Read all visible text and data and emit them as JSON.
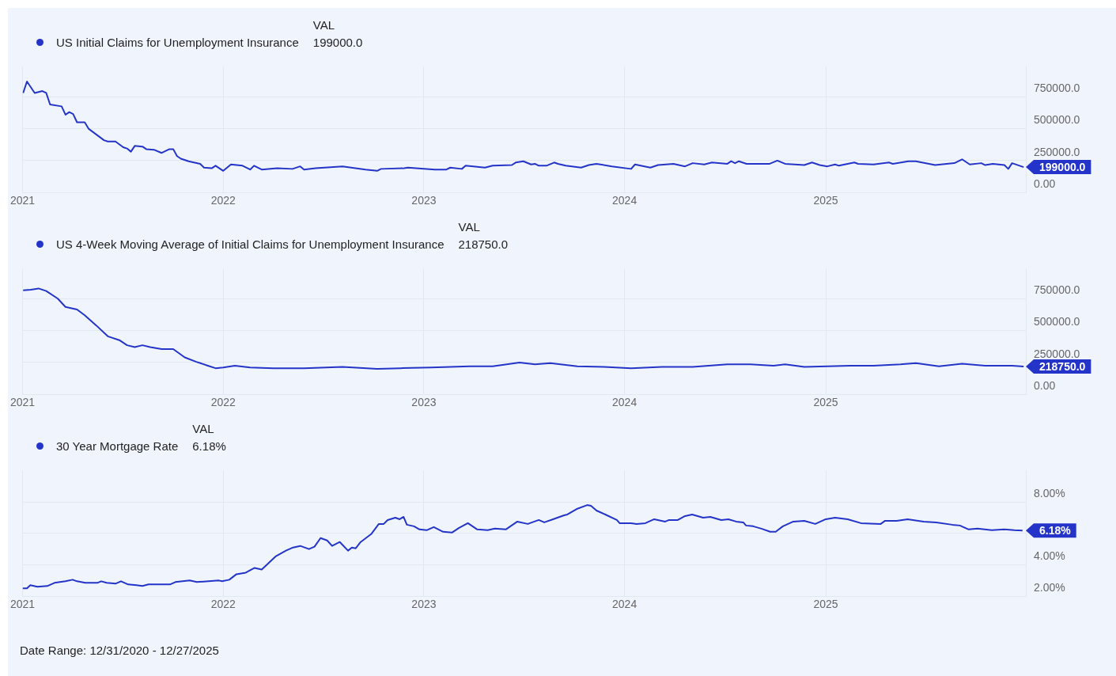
{
  "chart_data": [
    {
      "type": "line",
      "legend": "top left",
      "legend_title": "VAL",
      "grid": true,
      "xlim": [
        "2021-01-01",
        "2025-12-31"
      ],
      "xticks": [
        "2021",
        "2022",
        "2023",
        "2024",
        "2025"
      ],
      "ylim": [
        0,
        985000
      ],
      "yticks": [
        {
          "value": 0,
          "label": "0.00"
        },
        {
          "value": 250000,
          "label": "250000.0"
        },
        {
          "value": 500000,
          "label": "500000.0"
        },
        {
          "value": 750000,
          "label": "750000.0"
        }
      ],
      "annotations": [
        "199000.0",
        {
          "text": "199000.0",
          "x": "2025-12-27",
          "y": 199000
        }
      ],
      "series": [
        {
          "name": "US Initial Claims for Unemployment Insurance",
          "color": "#2434c8",
          "x": [
            "2021-01-02",
            "2021-01-09",
            "2021-01-23",
            "2021-02-06",
            "2021-02-13",
            "2021-02-20",
            "2021-03-13",
            "2021-03-20",
            "2021-03-27",
            "2021-04-03",
            "2021-04-10",
            "2021-04-24",
            "2021-05-01",
            "2021-05-29",
            "2021-06-05",
            "2021-06-19",
            "2021-07-03",
            "2021-07-10",
            "2021-07-17",
            "2021-07-24",
            "2021-08-07",
            "2021-08-14",
            "2021-08-28",
            "2021-09-11",
            "2021-09-25",
            "2021-10-02",
            "2021-10-09",
            "2021-10-16",
            "2021-10-30",
            "2021-11-20",
            "2021-11-27",
            "2021-12-11",
            "2021-12-18",
            "2022-01-01",
            "2022-01-15",
            "2022-02-05",
            "2022-02-19",
            "2022-02-26",
            "2022-03-12",
            "2022-04-09",
            "2022-05-07",
            "2022-05-21",
            "2022-05-28",
            "2022-06-18",
            "2022-08-06",
            "2022-09-17",
            "2022-10-08",
            "2022-10-15",
            "2022-11-26",
            "2022-12-03",
            "2023-01-21",
            "2023-02-11",
            "2023-02-18",
            "2023-03-11",
            "2023-03-18",
            "2023-04-22",
            "2023-05-06",
            "2023-06-10",
            "2023-06-17",
            "2023-07-01",
            "2023-07-15",
            "2023-07-22",
            "2023-07-29",
            "2023-08-12",
            "2023-08-26",
            "2023-09-02",
            "2023-09-16",
            "2023-10-14",
            "2023-10-28",
            "2023-11-11",
            "2023-12-09",
            "2024-01-13",
            "2024-01-20",
            "2024-02-17",
            "2024-03-02",
            "2024-03-30",
            "2024-04-20",
            "2024-05-04",
            "2024-05-25",
            "2024-06-08",
            "2024-07-06",
            "2024-07-13",
            "2024-07-20",
            "2024-07-27",
            "2024-08-10",
            "2024-09-21",
            "2024-10-05",
            "2024-10-19",
            "2024-11-23",
            "2024-12-07",
            "2024-12-21",
            "2025-01-04",
            "2025-01-18",
            "2025-01-25",
            "2025-02-22",
            "2025-03-01",
            "2025-03-29",
            "2025-04-26",
            "2025-05-03",
            "2025-05-31",
            "2025-06-14",
            "2025-07-19",
            "2025-08-23",
            "2025-09-06",
            "2025-09-20",
            "2025-10-11",
            "2025-10-18",
            "2025-11-01",
            "2025-11-22",
            "2025-11-29",
            "2025-12-06",
            "2025-12-27"
          ],
          "values": [
            780000,
            870000,
            780000,
            795000,
            780000,
            690000,
            675000,
            610000,
            630000,
            615000,
            550000,
            550000,
            500000,
            410000,
            400000,
            400000,
            355000,
            345000,
            320000,
            365000,
            360000,
            340000,
            335000,
            310000,
            340000,
            340000,
            285000,
            265000,
            245000,
            225000,
            195000,
            190000,
            210000,
            170000,
            220000,
            210000,
            180000,
            210000,
            180000,
            190000,
            185000,
            205000,
            180000,
            190000,
            205000,
            180000,
            170000,
            185000,
            190000,
            195000,
            180000,
            180000,
            195000,
            185000,
            210000,
            195000,
            210000,
            215000,
            235000,
            245000,
            220000,
            225000,
            210000,
            210000,
            235000,
            225000,
            210000,
            195000,
            215000,
            225000,
            205000,
            185000,
            220000,
            195000,
            215000,
            225000,
            205000,
            230000,
            220000,
            235000,
            225000,
            245000,
            230000,
            245000,
            225000,
            225000,
            250000,
            225000,
            215000,
            235000,
            215000,
            205000,
            220000,
            210000,
            235000,
            225000,
            220000,
            235000,
            225000,
            245000,
            245000,
            215000,
            230000,
            260000,
            220000,
            230000,
            215000,
            225000,
            215000,
            185000,
            230000,
            199000
          ]
        }
      ]
    },
    {
      "type": "line",
      "legend": "top left",
      "legend_title": "VAL",
      "grid": true,
      "xlim": [
        "2021-01-01",
        "2025-12-31"
      ],
      "xticks": [
        "2021",
        "2022",
        "2023",
        "2024",
        "2025"
      ],
      "ylim": [
        0,
        985000
      ],
      "yticks": [
        {
          "value": 0,
          "label": "0.00"
        },
        {
          "value": 250000,
          "label": "250000.0"
        },
        {
          "value": 500000,
          "label": "500000.0"
        },
        {
          "value": 750000,
          "label": "750000.0"
        }
      ],
      "annotations": [
        "218750.0",
        {
          "text": "218750.0",
          "x": "2025-12-27",
          "y": 218750
        }
      ],
      "series": [
        {
          "name": "US 4-Week Moving Average of Initial Claims for Unemployment Insurance",
          "color": "#2434c8",
          "x": [
            "2021-01-02",
            "2021-01-16",
            "2021-01-30",
            "2021-02-13",
            "2021-03-06",
            "2021-03-20",
            "2021-04-10",
            "2021-04-24",
            "2021-05-15",
            "2021-06-05",
            "2021-06-26",
            "2021-07-10",
            "2021-07-24",
            "2021-08-07",
            "2021-08-21",
            "2021-09-11",
            "2021-10-02",
            "2021-10-23",
            "2021-11-13",
            "2021-12-04",
            "2021-12-18",
            "2022-01-01",
            "2022-01-22",
            "2022-02-19",
            "2022-04-02",
            "2022-05-28",
            "2022-08-06",
            "2022-10-08",
            "2022-11-19",
            "2023-01-14",
            "2023-03-25",
            "2023-05-06",
            "2023-06-24",
            "2023-07-22",
            "2023-08-19",
            "2023-10-07",
            "2023-11-25",
            "2024-01-13",
            "2024-03-09",
            "2024-05-04",
            "2024-07-06",
            "2024-08-17",
            "2024-09-28",
            "2024-10-19",
            "2024-11-23",
            "2025-01-04",
            "2025-02-15",
            "2025-03-29",
            "2025-05-17",
            "2025-06-14",
            "2025-07-26",
            "2025-09-06",
            "2025-10-18",
            "2025-12-06",
            "2025-12-27"
          ],
          "values": [
            815000,
            820000,
            830000,
            810000,
            750000,
            685000,
            665000,
            620000,
            540000,
            455000,
            425000,
            385000,
            370000,
            385000,
            370000,
            355000,
            355000,
            290000,
            255000,
            225000,
            205000,
            210000,
            225000,
            210000,
            205000,
            205000,
            215000,
            200000,
            205000,
            210000,
            220000,
            220000,
            250000,
            235000,
            245000,
            220000,
            215000,
            205000,
            215000,
            215000,
            235000,
            235000,
            225000,
            235000,
            215000,
            220000,
            225000,
            225000,
            235000,
            245000,
            220000,
            240000,
            225000,
            225000,
            218750
          ]
        }
      ]
    },
    {
      "type": "line",
      "legend": "top left",
      "legend_title": "VAL",
      "grid": true,
      "xlim": [
        "2021-01-01",
        "2025-12-31"
      ],
      "xticks": [
        "2021",
        "2022",
        "2023",
        "2024",
        "2025"
      ],
      "ylim": [
        2,
        10
      ],
      "yticks": [
        {
          "value": 2,
          "label": "2.00%"
        },
        {
          "value": 4,
          "label": "4.00%"
        },
        {
          "value": 6,
          "label": null
        },
        {
          "value": 8,
          "label": "8.00%"
        }
      ],
      "annotations": [
        "6.18%",
        {
          "text": "6.18%",
          "x": "2025-12-25",
          "y": 6.18
        },
        "Date Range: 12/31/2020 - 12/27/2025"
      ],
      "series": [
        {
          "name": "30 Year Mortgage Rate",
          "color": "#2434c8",
          "x": [
            "2021-01-01",
            "2021-01-09",
            "2021-01-15",
            "2021-01-28",
            "2021-02-15",
            "2021-02-28",
            "2021-03-20",
            "2021-04-02",
            "2021-04-10",
            "2021-04-25",
            "2021-05-17",
            "2021-05-24",
            "2021-06-03",
            "2021-06-19",
            "2021-06-29",
            "2021-07-12",
            "2021-07-27",
            "2021-08-07",
            "2021-08-18",
            "2021-09-26",
            "2021-10-06",
            "2021-11-01",
            "2021-11-14",
            "2021-12-24",
            "2021-12-30",
            "2022-01-12",
            "2022-01-25",
            "2022-02-11",
            "2022-02-27",
            "2022-03-12",
            "2022-04-07",
            "2022-04-25",
            "2022-05-08",
            "2022-05-21",
            "2022-06-06",
            "2022-06-16",
            "2022-06-27",
            "2022-07-09",
            "2022-07-18",
            "2022-08-01",
            "2022-08-16",
            "2022-08-23",
            "2022-08-30",
            "2022-09-08",
            "2022-09-27",
            "2022-10-11",
            "2022-10-20",
            "2022-10-27",
            "2022-11-10",
            "2022-11-18",
            "2022-11-25",
            "2022-12-01",
            "2022-12-14",
            "2022-12-24",
            "2023-01-06",
            "2023-01-19",
            "2023-02-05",
            "2023-02-21",
            "2023-03-06",
            "2023-03-22",
            "2023-04-08",
            "2023-04-27",
            "2023-05-10",
            "2023-05-30",
            "2023-06-20",
            "2023-07-09",
            "2023-07-29",
            "2023-08-08",
            "2023-08-24",
            "2023-09-13",
            "2023-09-19",
            "2023-10-06",
            "2023-10-25",
            "2023-11-01",
            "2023-11-11",
            "2023-11-27",
            "2023-12-18",
            "2023-12-23",
            "2024-01-13",
            "2024-01-23",
            "2024-02-08",
            "2024-02-24",
            "2024-03-15",
            "2024-03-22",
            "2024-04-07",
            "2024-04-20",
            "2024-05-03",
            "2024-05-23",
            "2024-06-05",
            "2024-06-25",
            "2024-07-08",
            "2024-07-22",
            "2024-08-04",
            "2024-08-09",
            "2024-08-22",
            "2024-09-06",
            "2024-09-22",
            "2024-10-02",
            "2024-10-15",
            "2024-11-03",
            "2024-11-23",
            "2024-12-13",
            "2025-01-01",
            "2025-01-18",
            "2025-02-10",
            "2025-03-06",
            "2025-04-11",
            "2025-04-19",
            "2025-05-10",
            "2025-05-30",
            "2025-06-28",
            "2025-07-21",
            "2025-08-19",
            "2025-09-02",
            "2025-09-18",
            "2025-10-04",
            "2025-10-30",
            "2025-11-22",
            "2025-12-10",
            "2025-12-25"
          ],
          "values": [
            2.5,
            2.5,
            2.7,
            2.6,
            2.65,
            2.85,
            2.95,
            3.05,
            2.95,
            2.85,
            2.85,
            2.95,
            2.85,
            2.8,
            2.95,
            2.75,
            2.7,
            2.65,
            2.75,
            2.75,
            2.9,
            3.0,
            2.9,
            3.0,
            2.95,
            3.05,
            3.4,
            3.5,
            3.8,
            3.7,
            4.55,
            4.9,
            5.1,
            5.2,
            5.0,
            5.15,
            5.7,
            5.55,
            5.2,
            5.45,
            4.9,
            5.1,
            5.05,
            5.45,
            5.95,
            6.6,
            6.6,
            6.85,
            7.0,
            6.9,
            7.05,
            6.55,
            6.45,
            6.25,
            6.2,
            6.4,
            6.1,
            6.05,
            6.35,
            6.65,
            6.25,
            6.2,
            6.3,
            6.25,
            6.75,
            6.6,
            6.85,
            6.7,
            6.9,
            7.15,
            7.2,
            7.55,
            7.8,
            7.75,
            7.45,
            7.2,
            6.85,
            6.65,
            6.65,
            6.6,
            6.65,
            6.9,
            6.75,
            6.85,
            6.85,
            7.1,
            7.2,
            7.0,
            7.05,
            6.85,
            6.9,
            6.75,
            6.7,
            6.5,
            6.45,
            6.3,
            6.1,
            6.1,
            6.45,
            6.75,
            6.8,
            6.6,
            6.9,
            7.0,
            6.9,
            6.65,
            6.6,
            6.8,
            6.8,
            6.9,
            6.75,
            6.7,
            6.55,
            6.5,
            6.25,
            6.3,
            6.2,
            6.25,
            6.2,
            6.18
          ]
        }
      ]
    }
  ]
}
